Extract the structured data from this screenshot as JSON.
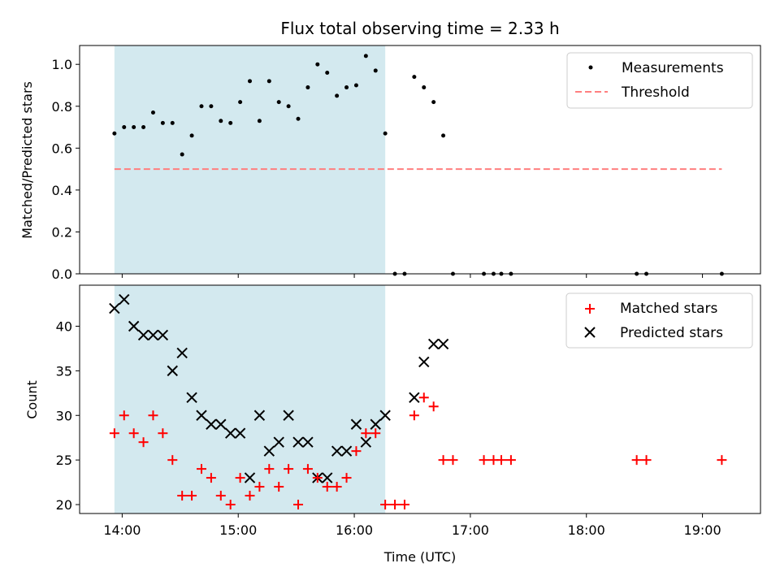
{
  "chart_data": [
    {
      "type": "scatter",
      "title": "Flux total observing time = 2.33 h",
      "xlabel": "",
      "ylabel": "Matched/Predicted stars",
      "ylim": [
        0,
        1.09
      ],
      "ytick_values": [
        0.0,
        0.2,
        0.4,
        0.6,
        0.8,
        1.0
      ],
      "ytick_labels": [
        "0.0",
        "0.2",
        "0.4",
        "0.6",
        "0.8",
        "1.0"
      ],
      "legend_position": "top-right",
      "shaded_interval": {
        "start": "13:56",
        "end": "16:16",
        "color": "#d3e9ef"
      },
      "threshold": {
        "name": "Threshold",
        "value": 0.5,
        "x_start": "13:56",
        "x_end": "19:10",
        "color": "#ff7f7f"
      },
      "series": [
        {
          "name": "Measurements",
          "marker": "dot",
          "color": "#000000",
          "x": [
            "13:56",
            "14:01",
            "14:06",
            "14:11",
            "14:16",
            "14:21",
            "14:26",
            "14:31",
            "14:36",
            "14:41",
            "14:46",
            "14:51",
            "14:56",
            "15:01",
            "15:06",
            "15:11",
            "15:16",
            "15:21",
            "15:26",
            "15:31",
            "15:36",
            "15:41",
            "15:46",
            "15:51",
            "15:56",
            "16:01",
            "16:06",
            "16:11",
            "16:16",
            "16:21",
            "16:26",
            "16:31",
            "16:36",
            "16:41",
            "16:46",
            "16:51",
            "17:07",
            "17:12",
            "17:16",
            "17:21",
            "18:26",
            "18:31",
            "19:10"
          ],
          "y": [
            0.67,
            0.7,
            0.7,
            0.7,
            0.77,
            0.72,
            0.72,
            0.57,
            0.66,
            0.8,
            0.8,
            0.73,
            0.72,
            0.82,
            0.92,
            0.73,
            0.92,
            0.82,
            0.8,
            0.74,
            0.89,
            1.0,
            0.96,
            0.85,
            0.89,
            0.9,
            1.04,
            0.97,
            0.67,
            0.0,
            0.0,
            0.94,
            0.89,
            0.82,
            0.66,
            0.0,
            0.0,
            0.0,
            0.0,
            0.0,
            0.0,
            0.0,
            0.0
          ]
        }
      ]
    },
    {
      "type": "scatter",
      "title": "",
      "xlabel": "Time (UTC)",
      "ylabel": "Count",
      "ylim": [
        19,
        44.6
      ],
      "xlim": [
        "13:38",
        "19:30"
      ],
      "ytick_values": [
        20,
        25,
        30,
        35,
        40
      ],
      "ytick_labels": [
        "20",
        "25",
        "30",
        "35",
        "40"
      ],
      "xtick_values": [
        "14:00",
        "15:00",
        "16:00",
        "17:00",
        "18:00",
        "19:00"
      ],
      "xtick_labels": [
        "14:00",
        "15:00",
        "16:00",
        "17:00",
        "18:00",
        "19:00"
      ],
      "legend_position": "top-right",
      "shaded_interval": {
        "start": "13:56",
        "end": "16:16",
        "color": "#d3e9ef"
      },
      "series": [
        {
          "name": "Matched stars",
          "marker": "plus",
          "color": "#ff0000",
          "x": [
            "13:56",
            "14:01",
            "14:06",
            "14:11",
            "14:16",
            "14:21",
            "14:26",
            "14:31",
            "14:36",
            "14:41",
            "14:46",
            "14:51",
            "14:56",
            "15:01",
            "15:06",
            "15:11",
            "15:16",
            "15:21",
            "15:26",
            "15:31",
            "15:36",
            "15:41",
            "15:46",
            "15:51",
            "15:56",
            "16:01",
            "16:06",
            "16:11",
            "16:16",
            "16:21",
            "16:26",
            "16:31",
            "16:36",
            "16:41",
            "16:46",
            "16:51",
            "17:07",
            "17:12",
            "17:16",
            "17:21",
            "18:26",
            "18:31",
            "19:10"
          ],
          "y": [
            28,
            30,
            28,
            27,
            30,
            28,
            25,
            21,
            21,
            24,
            23,
            21,
            20,
            23,
            21,
            22,
            24,
            22,
            24,
            20,
            24,
            23,
            22,
            22,
            23,
            26,
            28,
            28,
            20,
            20,
            20,
            30,
            32,
            31,
            25,
            25,
            25,
            25,
            25,
            25,
            25,
            25,
            25
          ]
        },
        {
          "name": "Predicted stars",
          "marker": "x",
          "color": "#000000",
          "x": [
            "13:56",
            "14:01",
            "14:06",
            "14:11",
            "14:16",
            "14:21",
            "14:26",
            "14:31",
            "14:36",
            "14:41",
            "14:46",
            "14:51",
            "14:56",
            "15:01",
            "15:06",
            "15:11",
            "15:16",
            "15:21",
            "15:26",
            "15:31",
            "15:36",
            "15:41",
            "15:46",
            "15:51",
            "15:56",
            "16:01",
            "16:06",
            "16:11",
            "16:16",
            "16:31",
            "16:36",
            "16:41",
            "16:46"
          ],
          "y": [
            42,
            43,
            40,
            39,
            39,
            39,
            35,
            37,
            32,
            30,
            29,
            29,
            28,
            28,
            23,
            30,
            26,
            27,
            30,
            27,
            27,
            23,
            23,
            26,
            26,
            29,
            27,
            29,
            30,
            32,
            36,
            38,
            38
          ]
        }
      ]
    }
  ]
}
